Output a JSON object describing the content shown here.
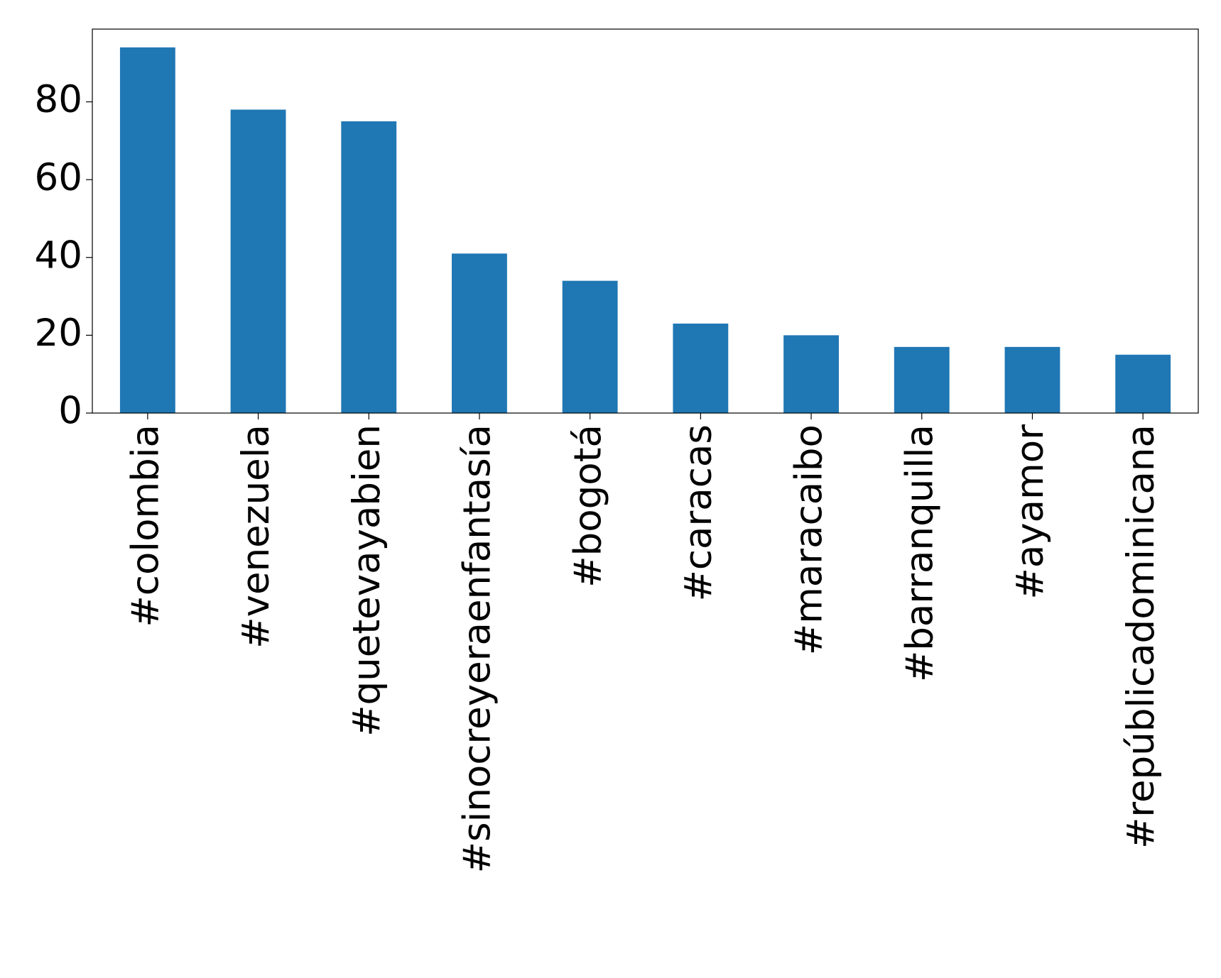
{
  "chart_data": {
    "type": "bar",
    "categories": [
      "#colombia",
      "#venezuela",
      "#quetevayabien",
      "#sinocreyeraenfantasía",
      "#bogotá",
      "#caracas",
      "#maracaibo",
      "#barranquilla",
      "#ayamor",
      "#repúblicadominicana"
    ],
    "values": [
      94,
      78,
      75,
      41,
      34,
      23,
      20,
      17,
      17,
      15
    ],
    "color": "#1f77b4",
    "ylim": [
      0,
      98.7
    ],
    "yticks": [
      0,
      20,
      40,
      60,
      80
    ],
    "grid": false
  }
}
